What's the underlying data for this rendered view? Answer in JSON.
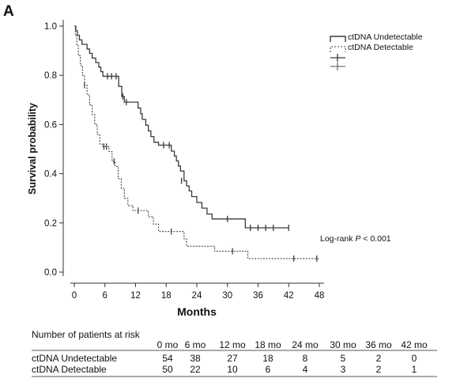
{
  "chart_data": {
    "type": "line",
    "panel_label": "A",
    "xlabel": "Months",
    "ylabel": "Survival probability",
    "xlim": [
      0,
      48
    ],
    "ylim": [
      0,
      1.0
    ],
    "x_ticks": [
      0,
      6,
      12,
      18,
      24,
      30,
      36,
      42,
      48
    ],
    "y_ticks": [
      "0.0",
      "0.2",
      "0.4",
      "0.6",
      "0.8",
      "1.0"
    ],
    "y_tick_values": [
      0,
      0.2,
      0.4,
      0.6,
      0.8,
      1.0
    ],
    "grid": false,
    "legend_position": "top-right",
    "legend": [
      "ctDNA Undetectable",
      "ctDNA Detectable"
    ],
    "annotation": {
      "prefix": "Log-rank ",
      "italic": "P",
      "suffix": " < 0.001"
    },
    "series": [
      {
        "name": "ctDNA Undetectable",
        "style": "solid",
        "color": "#3a3a3a",
        "steps": [
          [
            0,
            1.0
          ],
          [
            0.3,
            0.981
          ],
          [
            0.6,
            0.963
          ],
          [
            1.0,
            0.944
          ],
          [
            1.5,
            0.926
          ],
          [
            2.5,
            0.907
          ],
          [
            3.0,
            0.889
          ],
          [
            3.5,
            0.87
          ],
          [
            4.2,
            0.852
          ],
          [
            4.8,
            0.833
          ],
          [
            5.2,
            0.815
          ],
          [
            5.6,
            0.796
          ],
          [
            8.7,
            0.755
          ],
          [
            9.3,
            0.714
          ],
          [
            9.8,
            0.691
          ],
          [
            12.5,
            0.667
          ],
          [
            13.0,
            0.644
          ],
          [
            13.3,
            0.621
          ],
          [
            14.0,
            0.597
          ],
          [
            14.5,
            0.574
          ],
          [
            15.0,
            0.551
          ],
          [
            15.6,
            0.528
          ],
          [
            16.5,
            0.516
          ],
          [
            19.0,
            0.492
          ],
          [
            19.6,
            0.472
          ],
          [
            20.0,
            0.452
          ],
          [
            20.4,
            0.431
          ],
          [
            20.8,
            0.411
          ],
          [
            21.5,
            0.371
          ],
          [
            22.0,
            0.35
          ],
          [
            22.5,
            0.33
          ],
          [
            23.0,
            0.307
          ],
          [
            24.0,
            0.283
          ],
          [
            25.0,
            0.26
          ],
          [
            26.0,
            0.236
          ],
          [
            27.0,
            0.216
          ],
          [
            33.5,
            0.18
          ],
          [
            42.0,
            0.18
          ]
        ],
        "censored": [
          [
            6.5,
            0.796
          ],
          [
            7.3,
            0.796
          ],
          [
            8.2,
            0.796
          ],
          [
            9.5,
            0.714
          ],
          [
            10.2,
            0.691
          ],
          [
            17.5,
            0.516
          ],
          [
            18.6,
            0.516
          ],
          [
            21.0,
            0.371
          ],
          [
            30.0,
            0.216
          ],
          [
            34.5,
            0.18
          ],
          [
            36.0,
            0.18
          ],
          [
            37.5,
            0.18
          ],
          [
            39.0,
            0.18
          ],
          [
            42.0,
            0.18
          ]
        ]
      },
      {
        "name": "ctDNA Detectable",
        "style": "dashed",
        "color": "#444444",
        "steps": [
          [
            0,
            1.0
          ],
          [
            0.2,
            0.96
          ],
          [
            0.5,
            0.92
          ],
          [
            0.8,
            0.88
          ],
          [
            1.2,
            0.84
          ],
          [
            1.6,
            0.8
          ],
          [
            2.0,
            0.76
          ],
          [
            2.5,
            0.72
          ],
          [
            3.0,
            0.68
          ],
          [
            3.5,
            0.64
          ],
          [
            4.0,
            0.6
          ],
          [
            4.5,
            0.56
          ],
          [
            5.0,
            0.52
          ],
          [
            5.6,
            0.51
          ],
          [
            6.8,
            0.49
          ],
          [
            7.4,
            0.45
          ],
          [
            8.0,
            0.43
          ],
          [
            8.6,
            0.38
          ],
          [
            9.2,
            0.34
          ],
          [
            9.8,
            0.3
          ],
          [
            10.5,
            0.27
          ],
          [
            11.5,
            0.25
          ],
          [
            14.5,
            0.225
          ],
          [
            15.5,
            0.195
          ],
          [
            16.5,
            0.165
          ],
          [
            21.5,
            0.135
          ],
          [
            22.0,
            0.105
          ],
          [
            27.5,
            0.085
          ],
          [
            34.0,
            0.055
          ],
          [
            48.0,
            0.055
          ]
        ],
        "censored": [
          [
            2.0,
            0.76
          ],
          [
            5.8,
            0.51
          ],
          [
            6.3,
            0.51
          ],
          [
            7.8,
            0.45
          ],
          [
            12.5,
            0.25
          ],
          [
            19.0,
            0.165
          ],
          [
            31.0,
            0.085
          ],
          [
            43.0,
            0.055
          ],
          [
            47.5,
            0.055
          ]
        ]
      }
    ]
  },
  "risk_table": {
    "title": "Number of patients at risk",
    "headers": [
      "0 mo",
      "6 mo",
      "12 mo",
      "18 mo",
      "24 mo",
      "30 mo",
      "36 mo",
      "42 mo"
    ],
    "rows": [
      {
        "label": "ctDNA Undetectable",
        "values": [
          "54",
          "38",
          "27",
          "18",
          "8",
          "5",
          "2",
          "0"
        ]
      },
      {
        "label": "ctDNA Detectable",
        "values": [
          "50",
          "22",
          "10",
          "6",
          "4",
          "3",
          "2",
          "1"
        ]
      }
    ]
  }
}
